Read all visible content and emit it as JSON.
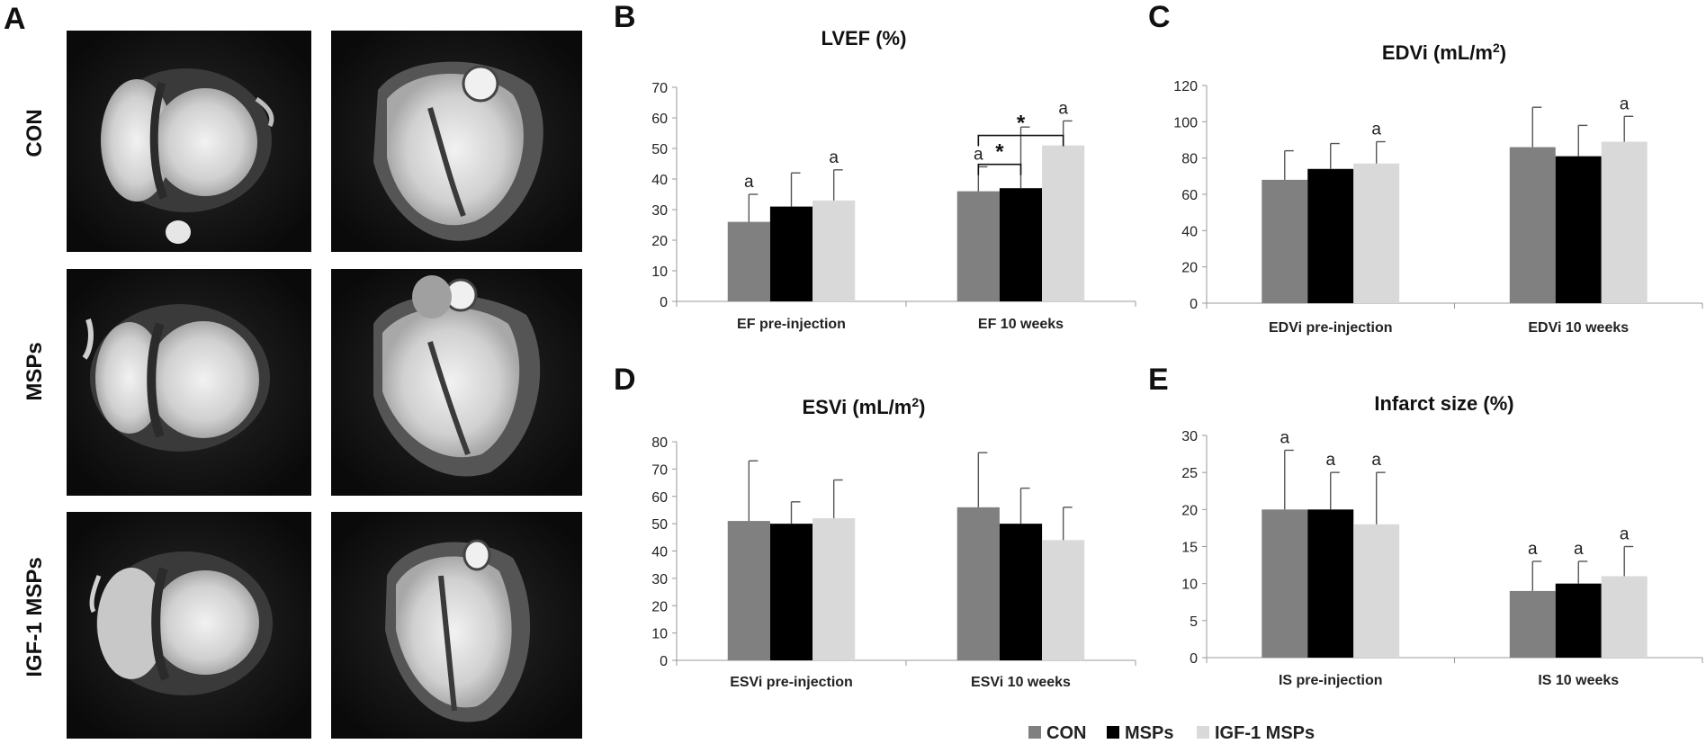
{
  "panels": {
    "a": {
      "letter": "A",
      "rows": [
        {
          "label": "CON"
        },
        {
          "label": "MSPs"
        },
        {
          "label": "IGF-1 MSPs"
        }
      ]
    }
  },
  "legend": [
    {
      "name": "CON",
      "color": "#808080"
    },
    {
      "name": "MSPs",
      "color": "#000000"
    },
    {
      "name": "IGF-1 MSPs",
      "color": "#d9d9d9"
    }
  ],
  "chart_data": [
    {
      "id": "b",
      "letter": "B",
      "type": "bar",
      "title": "LVEF (%)",
      "title_sup": "",
      "categories": [
        "EF pre-injection",
        "EF 10 weeks"
      ],
      "ylim": [
        0,
        70
      ],
      "yticks": [
        0,
        10,
        20,
        30,
        40,
        50,
        60,
        70
      ],
      "series": [
        {
          "name": "CON",
          "values": [
            26,
            36
          ],
          "errors": [
            9,
            8
          ],
          "annotations": [
            "a",
            "a"
          ]
        },
        {
          "name": "MSPs",
          "values": [
            31,
            37
          ],
          "errors": [
            11,
            20
          ],
          "annotations": [
            "",
            ""
          ]
        },
        {
          "name": "IGF-1 MSPs",
          "values": [
            33,
            51
          ],
          "errors": [
            10,
            8
          ],
          "annotations": [
            "a",
            "a"
          ]
        }
      ],
      "brackets": [
        {
          "category": 1,
          "from": 0,
          "to": 1,
          "label": "*",
          "level": 1
        },
        {
          "category": 1,
          "from": 0,
          "to": 2,
          "label": "*",
          "level": 2
        }
      ]
    },
    {
      "id": "c",
      "letter": "C",
      "type": "bar",
      "title": "EDVi (mL/m",
      "title_sup": "2",
      "title_end": ")",
      "categories": [
        "EDVi pre-injection",
        "EDVi 10 weeks"
      ],
      "ylim": [
        0,
        120
      ],
      "yticks": [
        0,
        20,
        40,
        60,
        80,
        100,
        120
      ],
      "series": [
        {
          "name": "CON",
          "values": [
            68,
            86
          ],
          "errors": [
            16,
            22
          ],
          "annotations": [
            "",
            ""
          ]
        },
        {
          "name": "MSPs",
          "values": [
            74,
            81
          ],
          "errors": [
            14,
            17
          ],
          "annotations": [
            "",
            ""
          ]
        },
        {
          "name": "IGF-1 MSPs",
          "values": [
            77,
            89
          ],
          "errors": [
            12,
            14
          ],
          "annotations": [
            "a",
            "a"
          ]
        }
      ],
      "brackets": []
    },
    {
      "id": "d",
      "letter": "D",
      "type": "bar",
      "title": "ESVi (mL/m",
      "title_sup": "2",
      "title_end": ")",
      "categories": [
        "ESVi pre-injection",
        "ESVi 10 weeks"
      ],
      "ylim": [
        0,
        80
      ],
      "yticks": [
        0,
        10,
        20,
        30,
        40,
        50,
        60,
        70,
        80
      ],
      "series": [
        {
          "name": "CON",
          "values": [
            51,
            56
          ],
          "errors": [
            22,
            20
          ],
          "annotations": [
            "",
            ""
          ]
        },
        {
          "name": "MSPs",
          "values": [
            50,
            50
          ],
          "errors": [
            8,
            13
          ],
          "annotations": [
            "",
            ""
          ]
        },
        {
          "name": "IGF-1 MSPs",
          "values": [
            52,
            44
          ],
          "errors": [
            14,
            12
          ],
          "annotations": [
            "",
            ""
          ]
        }
      ],
      "brackets": []
    },
    {
      "id": "e",
      "letter": "E",
      "type": "bar",
      "title": "Infarct size (%)",
      "title_sup": "",
      "categories": [
        "IS pre-injection",
        "IS 10 weeks"
      ],
      "ylim": [
        0,
        30
      ],
      "yticks": [
        0,
        5,
        10,
        15,
        20,
        25,
        30
      ],
      "series": [
        {
          "name": "CON",
          "values": [
            20,
            9
          ],
          "errors": [
            8,
            4
          ],
          "annotations": [
            "a",
            "a"
          ]
        },
        {
          "name": "MSPs",
          "values": [
            20,
            10
          ],
          "errors": [
            5,
            3
          ],
          "annotations": [
            "a",
            "a"
          ]
        },
        {
          "name": "IGF-1 MSPs",
          "values": [
            18,
            11
          ],
          "errors": [
            7,
            4
          ],
          "annotations": [
            "a",
            "a"
          ]
        }
      ],
      "brackets": []
    }
  ]
}
